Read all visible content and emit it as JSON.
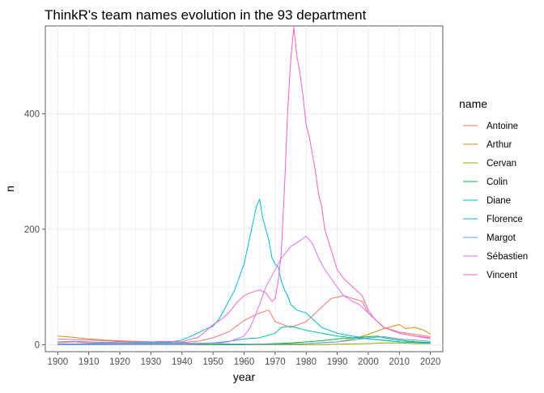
{
  "chart_data": {
    "type": "line",
    "title": "ThinkR's team names evolution in the 93 department",
    "xlabel": "year",
    "ylabel": "n",
    "xlim": [
      1896,
      2024
    ],
    "ylim": [
      -12,
      552
    ],
    "x_ticks": [
      1900,
      1910,
      1920,
      1930,
      1940,
      1950,
      1960,
      1970,
      1980,
      1990,
      2000,
      2010,
      2020
    ],
    "x_tick_labels": [
      "1900",
      "1910",
      "1920",
      "1930",
      "1940",
      "1950",
      "1960",
      "1970",
      "1980",
      "1990",
      "2000",
      "2010",
      "2020"
    ],
    "y_ticks": [
      0,
      200,
      400
    ],
    "y_tick_labels": [
      "0",
      "200",
      "400"
    ],
    "grid": true,
    "legend": {
      "title": "name",
      "position": "right"
    },
    "series": [
      {
        "name": "Antoine",
        "color": "#F8766D",
        "points": [
          [
            1900,
            3
          ],
          [
            1905,
            5
          ],
          [
            1910,
            3
          ],
          [
            1915,
            3
          ],
          [
            1920,
            3
          ],
          [
            1930,
            3
          ],
          [
            1940,
            4
          ],
          [
            1945,
            6
          ],
          [
            1950,
            12
          ],
          [
            1955,
            22
          ],
          [
            1960,
            42
          ],
          [
            1965,
            55
          ],
          [
            1968,
            60
          ],
          [
            1970,
            40
          ],
          [
            1975,
            30
          ],
          [
            1980,
            40
          ],
          [
            1985,
            65
          ],
          [
            1988,
            80
          ],
          [
            1992,
            85
          ],
          [
            1995,
            80
          ],
          [
            1998,
            75
          ],
          [
            2000,
            55
          ],
          [
            2003,
            40
          ],
          [
            2005,
            30
          ],
          [
            2010,
            22
          ],
          [
            2015,
            18
          ],
          [
            2020,
            14
          ]
        ]
      },
      {
        "name": "Arthur",
        "color": "#D39200",
        "points": [
          [
            1900,
            15
          ],
          [
            1905,
            13
          ],
          [
            1910,
            10
          ],
          [
            1915,
            8
          ],
          [
            1920,
            7
          ],
          [
            1925,
            6
          ],
          [
            1930,
            5
          ],
          [
            1935,
            4
          ],
          [
            1940,
            3
          ],
          [
            1950,
            2
          ],
          [
            1960,
            1
          ],
          [
            1970,
            1
          ],
          [
            1980,
            2
          ],
          [
            1990,
            5
          ],
          [
            1995,
            10
          ],
          [
            2000,
            18
          ],
          [
            2005,
            28
          ],
          [
            2008,
            32
          ],
          [
            2010,
            35
          ],
          [
            2012,
            28
          ],
          [
            2015,
            30
          ],
          [
            2018,
            25
          ],
          [
            2020,
            18
          ]
        ]
      },
      {
        "name": "Cervan",
        "color": "#93AA00",
        "points": [
          [
            1900,
            0
          ],
          [
            1970,
            0
          ],
          [
            1985,
            0
          ],
          [
            1990,
            1
          ],
          [
            2000,
            2
          ],
          [
            2005,
            3
          ],
          [
            2010,
            3
          ],
          [
            2015,
            2
          ],
          [
            2020,
            2
          ]
        ]
      },
      {
        "name": "Colin",
        "color": "#00BA38",
        "points": [
          [
            1900,
            0
          ],
          [
            1960,
            0
          ],
          [
            1970,
            2
          ],
          [
            1975,
            3
          ],
          [
            1980,
            5
          ],
          [
            1985,
            7
          ],
          [
            1990,
            10
          ],
          [
            1995,
            12
          ],
          [
            2000,
            14
          ],
          [
            2003,
            15
          ],
          [
            2005,
            12
          ],
          [
            2010,
            8
          ],
          [
            2015,
            5
          ],
          [
            2020,
            4
          ]
        ]
      },
      {
        "name": "Diane",
        "color": "#00C19F",
        "points": [
          [
            1900,
            1
          ],
          [
            1920,
            2
          ],
          [
            1930,
            2
          ],
          [
            1940,
            2
          ],
          [
            1950,
            3
          ],
          [
            1955,
            6
          ],
          [
            1960,
            10
          ],
          [
            1965,
            12
          ],
          [
            1970,
            20
          ],
          [
            1972,
            30
          ],
          [
            1975,
            32
          ],
          [
            1980,
            25
          ],
          [
            1985,
            20
          ],
          [
            1990,
            15
          ],
          [
            1995,
            12
          ],
          [
            2000,
            10
          ],
          [
            2005,
            8
          ],
          [
            2010,
            5
          ],
          [
            2015,
            4
          ],
          [
            2020,
            3
          ]
        ]
      },
      {
        "name": "Florence",
        "color": "#00B9E3",
        "points": [
          [
            1900,
            1
          ],
          [
            1920,
            2
          ],
          [
            1930,
            3
          ],
          [
            1935,
            4
          ],
          [
            1940,
            8
          ],
          [
            1943,
            15
          ],
          [
            1945,
            20
          ],
          [
            1948,
            28
          ],
          [
            1950,
            32
          ],
          [
            1952,
            45
          ],
          [
            1955,
            75
          ],
          [
            1957,
            95
          ],
          [
            1958,
            110
          ],
          [
            1960,
            140
          ],
          [
            1962,
            190
          ],
          [
            1963,
            215
          ],
          [
            1964,
            240
          ],
          [
            1965,
            252
          ],
          [
            1966,
            220
          ],
          [
            1967,
            200
          ],
          [
            1968,
            180
          ],
          [
            1969,
            150
          ],
          [
            1970,
            140
          ],
          [
            1971,
            135
          ],
          [
            1972,
            110
          ],
          [
            1973,
            95
          ],
          [
            1974,
            85
          ],
          [
            1975,
            70
          ],
          [
            1977,
            60
          ],
          [
            1980,
            55
          ],
          [
            1983,
            40
          ],
          [
            1985,
            30
          ],
          [
            1990,
            20
          ],
          [
            1995,
            15
          ],
          [
            2000,
            10
          ],
          [
            2010,
            5
          ],
          [
            2020,
            3
          ]
        ]
      },
      {
        "name": "Margot",
        "color": "#619CFF",
        "points": [
          [
            1900,
            5
          ],
          [
            1905,
            6
          ],
          [
            1910,
            5
          ],
          [
            1915,
            4
          ],
          [
            1920,
            5
          ],
          [
            1925,
            4
          ],
          [
            1930,
            4
          ],
          [
            1935,
            3
          ],
          [
            1940,
            3
          ],
          [
            1950,
            2
          ],
          [
            1960,
            1
          ],
          [
            1970,
            1
          ],
          [
            1980,
            2
          ],
          [
            1985,
            3
          ],
          [
            1990,
            5
          ],
          [
            1995,
            8
          ],
          [
            2000,
            12
          ],
          [
            2005,
            14
          ],
          [
            2010,
            10
          ],
          [
            2015,
            8
          ],
          [
            2020,
            6
          ]
        ]
      },
      {
        "name": "Sébastien",
        "color": "#DB72FB",
        "points": [
          [
            1900,
            0
          ],
          [
            1940,
            0
          ],
          [
            1950,
            2
          ],
          [
            1955,
            5
          ],
          [
            1960,
            15
          ],
          [
            1962,
            30
          ],
          [
            1965,
            70
          ],
          [
            1967,
            100
          ],
          [
            1970,
            130
          ],
          [
            1972,
            150
          ],
          [
            1975,
            170
          ],
          [
            1978,
            180
          ],
          [
            1980,
            188
          ],
          [
            1982,
            175
          ],
          [
            1984,
            150
          ],
          [
            1986,
            130
          ],
          [
            1988,
            115
          ],
          [
            1990,
            100
          ],
          [
            1992,
            85
          ],
          [
            1995,
            75
          ],
          [
            1997,
            70
          ],
          [
            2000,
            55
          ],
          [
            2002,
            45
          ],
          [
            2005,
            30
          ],
          [
            2010,
            20
          ],
          [
            2015,
            15
          ],
          [
            2020,
            10
          ]
        ]
      },
      {
        "name": "Vincent",
        "color": "#FF61C3",
        "points": [
          [
            1900,
            10
          ],
          [
            1905,
            9
          ],
          [
            1910,
            8
          ],
          [
            1915,
            7
          ],
          [
            1920,
            6
          ],
          [
            1925,
            5
          ],
          [
            1930,
            5
          ],
          [
            1935,
            6
          ],
          [
            1940,
            5
          ],
          [
            1943,
            10
          ],
          [
            1945,
            12
          ],
          [
            1948,
            25
          ],
          [
            1950,
            35
          ],
          [
            1953,
            45
          ],
          [
            1955,
            55
          ],
          [
            1958,
            75
          ],
          [
            1960,
            85
          ],
          [
            1962,
            90
          ],
          [
            1965,
            95
          ],
          [
            1967,
            90
          ],
          [
            1969,
            75
          ],
          [
            1970,
            80
          ],
          [
            1971,
            110
          ],
          [
            1972,
            160
          ],
          [
            1973,
            270
          ],
          [
            1974,
            400
          ],
          [
            1975,
            490
          ],
          [
            1976,
            550
          ],
          [
            1977,
            500
          ],
          [
            1978,
            470
          ],
          [
            1979,
            430
          ],
          [
            1980,
            380
          ],
          [
            1981,
            360
          ],
          [
            1982,
            330
          ],
          [
            1983,
            300
          ],
          [
            1984,
            260
          ],
          [
            1985,
            240
          ],
          [
            1986,
            200
          ],
          [
            1988,
            165
          ],
          [
            1990,
            130
          ],
          [
            1992,
            115
          ],
          [
            1995,
            100
          ],
          [
            1998,
            85
          ],
          [
            2000,
            60
          ],
          [
            2002,
            45
          ],
          [
            2005,
            30
          ],
          [
            2010,
            20
          ],
          [
            2015,
            15
          ],
          [
            2020,
            12
          ]
        ]
      }
    ]
  }
}
